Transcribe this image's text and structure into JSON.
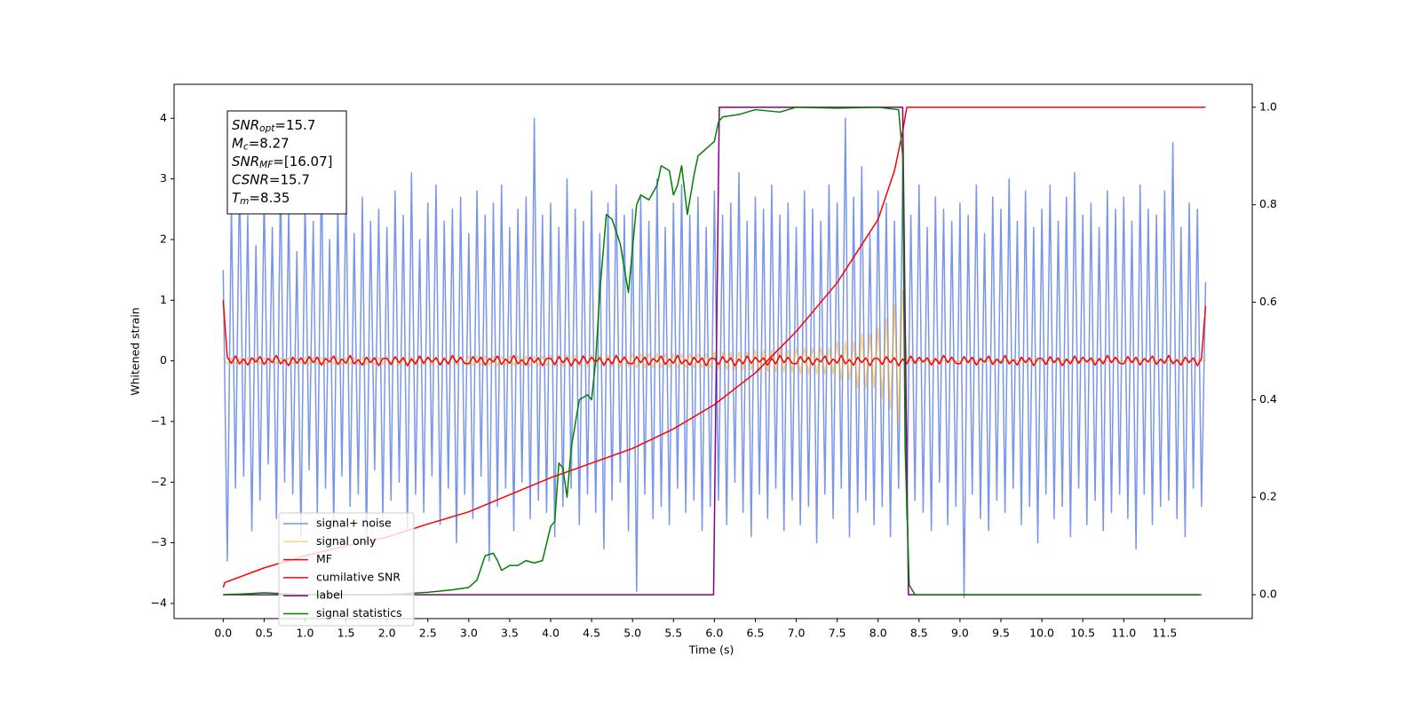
{
  "chart_data": {
    "type": "line",
    "xlabel": "Time (s)",
    "ylabel": "Whitened strain",
    "xlim": [
      -0.6,
      12.57
    ],
    "ylim": [
      -4.25,
      4.56
    ],
    "y2lim": [
      -0.049,
      1.047
    ],
    "xticks": [
      {
        "value": 0,
        "label": "0.0"
      },
      0.5,
      {
        "value": 1,
        "label": "1.0"
      },
      1.5,
      {
        "value": 2,
        "label": "2.0"
      },
      2.5,
      {
        "value": 3,
        "label": "3.0"
      },
      3.5,
      {
        "value": 4,
        "label": "4.0"
      },
      4.5,
      {
        "value": 5,
        "label": "5.0"
      },
      5.5,
      {
        "value": 6,
        "label": "6.0"
      },
      6.5,
      {
        "value": 7,
        "label": "7.0"
      },
      7.5,
      {
        "value": 8,
        "label": "8.0"
      },
      8.5,
      {
        "value": 9,
        "label": "9.0"
      },
      9.5,
      {
        "value": 10,
        "label": "10.0"
      },
      10.5,
      {
        "value": 11,
        "label": "11.0"
      },
      11.5
    ],
    "yticks": [
      {
        "value": -4,
        "label": "−4"
      },
      {
        "value": -3,
        "label": "−3"
      },
      {
        "value": -2,
        "label": "−2"
      },
      {
        "value": -1,
        "label": "−1"
      },
      0,
      1,
      2,
      3,
      4
    ],
    "y2ticks": [
      {
        "value": 0,
        "label": "0.0"
      },
      0.2,
      0.4,
      0.6,
      0.8,
      {
        "value": 1,
        "label": "1.0"
      }
    ],
    "legend": "lower left",
    "annotations": [
      {
        "symbol": "SNR",
        "subscript": "opt",
        "text": "=15.7"
      },
      {
        "symbol": "M",
        "subscript": "c",
        "text": "=8.27"
      },
      {
        "symbol": "SNR",
        "subscript": "MF",
        "text": "=[16.07]"
      },
      {
        "symbol": "CSNR",
        "text": "=15.7"
      },
      {
        "symbol": "T",
        "subscript": "m",
        "text": "=8.35"
      }
    ],
    "x": [
      0,
      0.05,
      0.1,
      0.15,
      0.2,
      0.25,
      0.3,
      0.35,
      0.4,
      0.45,
      0.5,
      0.55,
      0.6,
      0.65,
      0.7,
      0.75,
      0.8,
      0.85,
      0.9,
      0.95,
      1,
      1.05,
      1.1,
      1.15,
      1.2,
      1.25,
      1.3,
      1.35,
      1.4,
      1.45,
      1.5,
      1.55,
      1.6,
      1.65,
      1.7,
      1.75,
      1.8,
      1.85,
      1.9,
      1.95,
      2,
      2.05,
      2.1,
      2.15,
      2.2,
      2.25,
      2.3,
      2.35,
      2.4,
      2.45,
      2.5,
      2.55,
      2.6,
      2.65,
      2.7,
      2.75,
      2.8,
      2.85,
      2.9,
      2.95,
      3,
      3.05,
      3.1,
      3.15,
      3.2,
      3.25,
      3.3,
      3.35,
      3.4,
      3.45,
      3.5,
      3.55,
      3.6,
      3.65,
      3.7,
      3.75,
      3.8,
      3.85,
      3.9,
      3.95,
      4,
      4.05,
      4.1,
      4.15,
      4.2,
      4.25,
      4.3,
      4.35,
      4.4,
      4.45,
      4.5,
      4.55,
      4.6,
      4.65,
      4.7,
      4.75,
      4.8,
      4.85,
      4.9,
      4.95,
      5,
      5.05,
      5.1,
      5.15,
      5.2,
      5.25,
      5.3,
      5.35,
      5.4,
      5.45,
      5.5,
      5.55,
      5.6,
      5.65,
      5.7,
      5.75,
      5.8,
      5.85,
      5.9,
      5.95,
      6,
      6.05,
      6.1,
      6.15,
      6.2,
      6.25,
      6.3,
      6.35,
      6.4,
      6.45,
      6.5,
      6.55,
      6.6,
      6.65,
      6.7,
      6.75,
      6.8,
      6.85,
      6.9,
      6.95,
      7,
      7.05,
      7.1,
      7.15,
      7.2,
      7.25,
      7.3,
      7.35,
      7.4,
      7.45,
      7.5,
      7.55,
      7.6,
      7.65,
      7.7,
      7.75,
      7.8,
      7.85,
      7.9,
      7.95,
      8,
      8.05,
      8.1,
      8.15,
      8.2,
      8.25,
      8.3,
      8.35,
      8.4,
      8.45,
      8.5,
      8.55,
      8.6,
      8.65,
      8.7,
      8.75,
      8.8,
      8.85,
      8.9,
      8.95,
      9,
      9.05,
      9.1,
      9.15,
      9.2,
      9.25,
      9.3,
      9.35,
      9.4,
      9.45,
      9.5,
      9.55,
      9.6,
      9.65,
      9.7,
      9.75,
      9.8,
      9.85,
      9.9,
      9.95,
      10,
      10.05,
      10.1,
      10.15,
      10.2,
      10.25,
      10.3,
      10.35,
      10.4,
      10.45,
      10.5,
      10.55,
      10.6,
      10.65,
      10.7,
      10.75,
      10.8,
      10.85,
      10.9,
      10.95,
      11,
      11.05,
      11.1,
      11.15,
      11.2,
      11.25,
      11.3,
      11.35,
      11.4,
      11.45,
      11.5,
      11.55,
      11.6,
      11.65,
      11.7,
      11.75,
      11.8,
      11.85,
      11.9,
      11.95,
      12
    ],
    "series": [
      {
        "name": "signal+ noise",
        "color": "#4169e1",
        "opacity": 0.7,
        "values": [
          1.5,
          -3.3,
          2.6,
          -2.1,
          3.1,
          -1.9,
          2.4,
          -2.8,
          1.9,
          -2.3,
          2.8,
          -1.7,
          2.2,
          -2.6,
          3.0,
          -2.0,
          2.5,
          -2.2,
          1.8,
          -2.9,
          2.7,
          -1.8,
          2.3,
          -2.5,
          3.2,
          -2.1,
          2.0,
          -2.7,
          2.6,
          -1.9,
          2.9,
          -2.4,
          2.1,
          -2.2,
          2.7,
          -3.0,
          2.3,
          -1.8,
          2.5,
          -2.6,
          2.2,
          -2.3,
          2.8,
          -2.0,
          2.4,
          -2.8,
          3.1,
          -2.2,
          2.0,
          -2.5,
          2.6,
          -1.9,
          2.9,
          -2.7,
          2.3,
          -2.1,
          2.5,
          -3.0,
          2.7,
          -2.2,
          2.1,
          -2.6,
          2.8,
          -1.9,
          2.4,
          -3.3,
          2.6,
          -2.4,
          2.9,
          -2.1,
          2.2,
          -2.8,
          2.5,
          -2.0,
          2.7,
          -2.6,
          4.0,
          -2.3,
          2.4,
          -2.5,
          2.6,
          -2.9,
          2.2,
          -2.4,
          3.0,
          -2.1,
          2.5,
          -2.7,
          2.3,
          -2.2,
          2.8,
          -2.5,
          2.1,
          -3.1,
          2.6,
          -2.3,
          2.9,
          -2.0,
          2.4,
          -2.8,
          2.5,
          -3.8,
          2.7,
          -2.2,
          2.3,
          -2.6,
          3.0,
          -2.4,
          2.2,
          -2.7,
          2.6,
          -2.1,
          2.9,
          -2.5,
          2.4,
          -2.3,
          2.7,
          -2.8,
          2.2,
          -2.4,
          2.8,
          -2.3,
          2.4,
          -2.7,
          2.6,
          -2.0,
          3.1,
          -2.5,
          2.3,
          -2.9,
          2.7,
          -2.2,
          2.5,
          -2.6,
          2.9,
          -2.1,
          2.4,
          -2.8,
          2.6,
          -2.3,
          2.2,
          -2.7,
          2.8,
          -2.4,
          2.5,
          -3.0,
          2.3,
          -2.2,
          2.9,
          -2.6,
          2.6,
          -2.1,
          4.0,
          -2.9,
          2.7,
          -2.5,
          3.2,
          -2.3,
          2.1,
          -2.7,
          2.8,
          -2.4,
          2.6,
          -2.9,
          2.3,
          -2.1,
          3.1,
          -2.6,
          2.4,
          -2.3,
          2.9,
          -2.5,
          2.2,
          -2.8,
          2.7,
          -2.0,
          2.5,
          -2.7,
          2.3,
          -2.4,
          2.6,
          -3.9,
          2.4,
          -2.2,
          2.9,
          -2.6,
          2.1,
          -2.8,
          2.7,
          -2.3,
          2.5,
          -2.5,
          3.0,
          -2.1,
          2.3,
          -2.7,
          2.8,
          -2.4,
          2.2,
          -3.0,
          2.5,
          -2.2,
          2.9,
          -2.6,
          2.3,
          -2.4,
          2.7,
          -2.9,
          3.1,
          -2.1,
          2.4,
          -2.7,
          2.6,
          -2.3,
          2.2,
          -2.8,
          2.8,
          -2.5,
          2.5,
          -2.2,
          2.7,
          -2.6,
          2.3,
          -3.1,
          2.9,
          -2.2,
          2.5,
          -2.7,
          2.4,
          -2.4,
          2.8,
          -2.3,
          3.6,
          -2.6,
          2.2,
          -2.9,
          2.6,
          -2.1,
          2.5,
          -2.4,
          1.3
        ]
      },
      {
        "name": "signal only",
        "color": "#ffa500",
        "opacity": 0.5,
        "values": [
          0.05,
          -0.05,
          0.05,
          -0.05,
          0.05,
          -0.05,
          0.05,
          -0.05,
          0.05,
          -0.05,
          0.05,
          -0.05,
          0.05,
          -0.05,
          0.05,
          -0.05,
          0.05,
          -0.05,
          0.05,
          -0.05,
          0.06,
          -0.06,
          0.06,
          -0.06,
          0.06,
          -0.06,
          0.06,
          -0.06,
          0.06,
          -0.06,
          0.06,
          -0.06,
          0.06,
          -0.06,
          0.06,
          -0.06,
          0.06,
          -0.06,
          0.06,
          -0.06,
          0.07,
          -0.07,
          0.07,
          -0.07,
          0.07,
          -0.07,
          0.07,
          -0.07,
          0.07,
          -0.07,
          0.07,
          -0.07,
          0.07,
          -0.07,
          0.07,
          -0.07,
          0.07,
          -0.07,
          0.07,
          -0.07,
          0.08,
          -0.08,
          0.08,
          -0.08,
          0.08,
          -0.08,
          0.08,
          -0.08,
          0.08,
          -0.08,
          0.08,
          -0.08,
          0.08,
          -0.08,
          0.08,
          -0.08,
          0.08,
          -0.08,
          0.08,
          -0.08,
          0.1,
          -0.1,
          0.1,
          -0.1,
          0.1,
          -0.1,
          0.1,
          -0.1,
          0.1,
          -0.1,
          0.1,
          -0.1,
          0.1,
          -0.1,
          0.1,
          -0.1,
          0.1,
          -0.1,
          0.1,
          -0.1,
          0.12,
          -0.12,
          0.12,
          -0.12,
          0.12,
          -0.12,
          0.12,
          -0.12,
          0.12,
          -0.12,
          0.12,
          -0.12,
          0.12,
          -0.12,
          0.12,
          -0.12,
          0.12,
          -0.12,
          0.12,
          -0.12,
          0.15,
          -0.15,
          0.15,
          -0.15,
          0.15,
          -0.15,
          0.15,
          -0.15,
          0.15,
          -0.15,
          0.18,
          -0.18,
          0.18,
          -0.18,
          0.18,
          -0.18,
          0.18,
          -0.18,
          0.18,
          -0.18,
          0.22,
          -0.22,
          0.22,
          -0.22,
          0.22,
          -0.22,
          0.22,
          -0.22,
          0.22,
          -0.22,
          0.32,
          -0.32,
          0.32,
          -0.32,
          0.32,
          -0.45,
          0.45,
          -0.45,
          0.45,
          -0.45,
          0.55,
          -0.62,
          0.7,
          -0.8,
          0.92,
          -1.05,
          1.15,
          0,
          0,
          0,
          0,
          0,
          0,
          0,
          0,
          0,
          0,
          0,
          0,
          0,
          0,
          0,
          0,
          0,
          0,
          0,
          0,
          0,
          0,
          0,
          0,
          0,
          0,
          0,
          0,
          0,
          0,
          0,
          0,
          0,
          0,
          0,
          0,
          0,
          0,
          0,
          0,
          0,
          0,
          0,
          0,
          0,
          0,
          0,
          0,
          0,
          0,
          0,
          0,
          0,
          0,
          0,
          0,
          0,
          0,
          0,
          0,
          0,
          0,
          0,
          0,
          0,
          0,
          0,
          0,
          0,
          0,
          0,
          0,
          0,
          0
        ]
      },
      {
        "name": "MF",
        "color": "#ff0000",
        "values": [
          1.0,
          0.06,
          -0.04,
          0.08,
          -0.05,
          0.03,
          -0.07,
          0.05,
          -0.02,
          0.07,
          -0.06,
          0.04,
          -0.03,
          0.09,
          -0.05,
          0.02,
          -0.08,
          0.06,
          -0.04,
          0.05,
          -0.05,
          0.07,
          -0.03,
          0.06,
          -0.07,
          0.04,
          -0.02,
          0.08,
          -0.06,
          0.03,
          -0.04,
          0.09,
          -0.05,
          0.02,
          -0.07,
          0.06,
          -0.03,
          0.05,
          -0.08,
          0.04,
          0.04,
          -0.06,
          0.07,
          -0.03,
          0.05,
          -0.08,
          0.03,
          -0.05,
          0.08,
          -0.04,
          0.06,
          -0.02,
          0.05,
          -0.07,
          0.04,
          -0.05,
          0.09,
          -0.03,
          0.06,
          -0.04,
          -0.05,
          0.07,
          -0.03,
          0.06,
          -0.07,
          0.04,
          -0.02,
          0.08,
          -0.06,
          0.03,
          -0.04,
          0.09,
          -0.05,
          0.02,
          -0.07,
          0.06,
          -0.03,
          0.05,
          -0.08,
          0.04,
          0.04,
          -0.06,
          0.07,
          -0.03,
          0.05,
          -0.08,
          0.03,
          -0.05,
          0.08,
          -0.04,
          0.06,
          -0.02,
          0.05,
          -0.07,
          0.04,
          -0.05,
          0.09,
          -0.03,
          0.06,
          -0.04,
          -0.05,
          0.07,
          -0.03,
          0.06,
          -0.07,
          0.04,
          -0.02,
          0.08,
          -0.06,
          0.03,
          -0.04,
          0.09,
          -0.05,
          0.02,
          -0.07,
          0.06,
          -0.03,
          0.05,
          -0.08,
          0.04,
          0.04,
          -0.06,
          0.07,
          -0.03,
          0.05,
          -0.08,
          0.03,
          -0.05,
          0.08,
          -0.04,
          0.06,
          -0.02,
          0.05,
          -0.07,
          0.04,
          -0.05,
          0.09,
          -0.03,
          0.06,
          -0.04,
          -0.05,
          0.07,
          -0.03,
          0.06,
          -0.07,
          0.04,
          -0.02,
          0.08,
          -0.06,
          0.03,
          -0.04,
          0.09,
          -0.05,
          0.02,
          -0.07,
          0.06,
          -0.03,
          0.05,
          -0.08,
          0.04,
          0.04,
          -0.06,
          0.07,
          -0.03,
          0.05,
          -0.08,
          0.03,
          -0.05,
          0.08,
          -0.04,
          0.06,
          -0.02,
          0.05,
          -0.07,
          0.04,
          -0.05,
          0.09,
          -0.03,
          0.06,
          -0.04,
          -0.05,
          0.07,
          -0.03,
          0.06,
          -0.07,
          0.04,
          -0.02,
          0.08,
          -0.06,
          0.03,
          -0.04,
          0.09,
          -0.05,
          0.02,
          -0.07,
          0.06,
          -0.03,
          0.05,
          -0.08,
          0.04,
          0.04,
          -0.06,
          0.07,
          -0.03,
          0.05,
          -0.08,
          0.03,
          -0.05,
          0.08,
          -0.04,
          0.06,
          -0.02,
          0.05,
          -0.07,
          0.04,
          -0.05,
          0.09,
          -0.03,
          0.06,
          -0.04,
          -0.05,
          0.07,
          -0.03,
          0.06,
          -0.07,
          0.04,
          -0.02,
          0.08,
          -0.06,
          0.03,
          -0.04,
          0.09,
          -0.05,
          0.02,
          -0.07,
          0.06,
          -0.03,
          0.05,
          -0.08,
          0.04,
          0.9
        ]
      },
      {
        "name": "cumilative SNR",
        "color": "#ff0000",
        "axis": "y2",
        "x": [
          0,
          0.02,
          0.5,
          1,
          1.5,
          2,
          2.5,
          3,
          3.5,
          4,
          4.5,
          5,
          5.5,
          6,
          6.5,
          7,
          7.5,
          8,
          8.2,
          8.3,
          8.35,
          12
        ],
        "values": [
          0.015,
          0.025,
          0.055,
          0.08,
          0.1,
          0.118,
          0.145,
          0.17,
          0.205,
          0.24,
          0.27,
          0.3,
          0.34,
          0.39,
          0.455,
          0.54,
          0.64,
          0.77,
          0.87,
          0.95,
          1,
          1
        ]
      },
      {
        "name": "label",
        "color": "#800080",
        "axis": "y2",
        "x": [
          0,
          5.99,
          6.06,
          8.3,
          8.37,
          11.92
        ],
        "values": [
          0,
          0,
          1,
          1,
          0,
          0
        ]
      },
      {
        "name": "signal statistics",
        "color": "#008000",
        "axis": "y2",
        "x": [
          0,
          0.3,
          0.5,
          1,
          1.5,
          2,
          2.5,
          2.8,
          3,
          3.1,
          3.2,
          3.3,
          3.35,
          3.4,
          3.5,
          3.6,
          3.7,
          3.8,
          3.9,
          4,
          4.05,
          4.1,
          4.15,
          4.2,
          4.25,
          4.35,
          4.45,
          4.5,
          4.55,
          4.6,
          4.68,
          4.75,
          4.85,
          4.95,
          5.05,
          5.1,
          5.2,
          5.3,
          5.35,
          5.45,
          5.5,
          5.55,
          5.6,
          5.67,
          5.75,
          5.8,
          6,
          6.05,
          6.1,
          6.3,
          6.5,
          6.8,
          7,
          7.5,
          8,
          8.25,
          8.3,
          8.33,
          8.38,
          8.45,
          10,
          11.95
        ],
        "values": [
          0,
          0.002,
          0.004,
          0,
          0,
          0,
          0.005,
          0.01,
          0.015,
          0.03,
          0.08,
          0.085,
          0.07,
          0.05,
          0.06,
          0.06,
          0.07,
          0.065,
          0.07,
          0.14,
          0.15,
          0.27,
          0.26,
          0.2,
          0.3,
          0.4,
          0.41,
          0.4,
          0.48,
          0.62,
          0.78,
          0.77,
          0.72,
          0.62,
          0.8,
          0.82,
          0.81,
          0.84,
          0.88,
          0.87,
          0.82,
          0.84,
          0.88,
          0.78,
          0.86,
          0.9,
          0.93,
          0.97,
          0.98,
          0.985,
          0.995,
          0.99,
          1,
          0.998,
          1,
          0.995,
          0.9,
          0.3,
          0.02,
          0,
          0,
          0
        ]
      }
    ]
  }
}
